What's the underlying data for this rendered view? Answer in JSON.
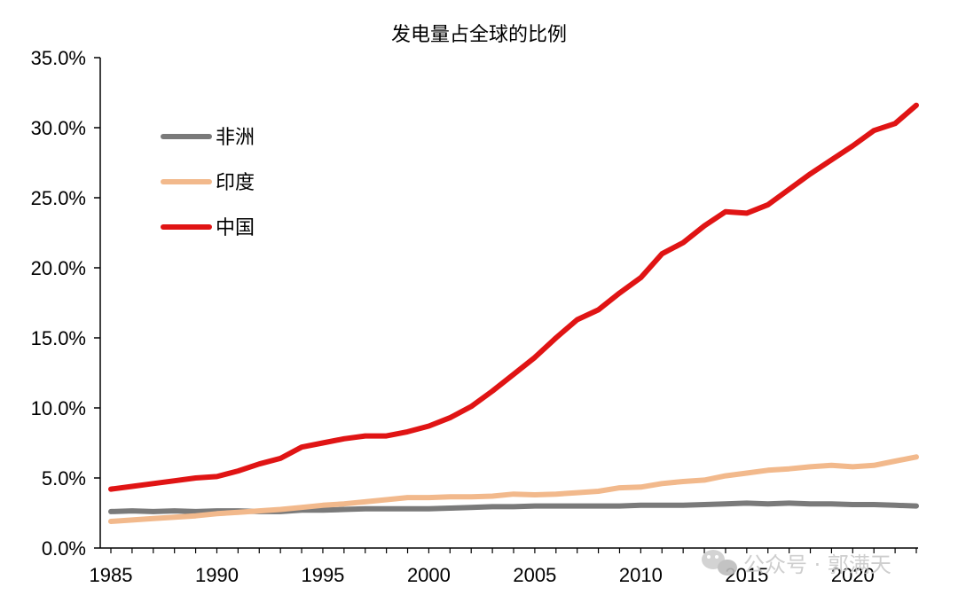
{
  "watermark": {
    "text": "公众号 · 郭满天",
    "icon": "wechat-icon"
  },
  "chart_data": {
    "type": "line",
    "title": "发电量占全球的比例",
    "xlabel": "",
    "ylabel": "",
    "xlim": [
      1985,
      2023
    ],
    "ylim": [
      0,
      35
    ],
    "x_ticks": [
      1985,
      1990,
      1995,
      2000,
      2005,
      2010,
      2015,
      2020
    ],
    "y_ticks": [
      "0.0%",
      "5.0%",
      "10.0%",
      "15.0%",
      "20.0%",
      "25.0%",
      "30.0%",
      "35.0%"
    ],
    "grid": false,
    "legend_position": "top-left",
    "x": [
      1985,
      1986,
      1987,
      1988,
      1989,
      1990,
      1991,
      1992,
      1993,
      1994,
      1995,
      1996,
      1997,
      1998,
      1999,
      2000,
      2001,
      2002,
      2003,
      2004,
      2005,
      2006,
      2007,
      2008,
      2009,
      2010,
      2011,
      2012,
      2013,
      2014,
      2015,
      2016,
      2017,
      2018,
      2019,
      2020,
      2021,
      2022,
      2023
    ],
    "series": [
      {
        "name": "非洲",
        "color": "#7a7a7a",
        "values": [
          2.6,
          2.65,
          2.6,
          2.65,
          2.6,
          2.65,
          2.65,
          2.6,
          2.6,
          2.7,
          2.7,
          2.75,
          2.8,
          2.8,
          2.8,
          2.8,
          2.85,
          2.9,
          2.95,
          2.95,
          3.0,
          3.0,
          3.0,
          3.0,
          3.0,
          3.05,
          3.05,
          3.05,
          3.1,
          3.15,
          3.2,
          3.15,
          3.2,
          3.15,
          3.15,
          3.1,
          3.1,
          3.05,
          3.0
        ]
      },
      {
        "name": "印度",
        "color": "#f2b98c",
        "values": [
          1.9,
          2.0,
          2.1,
          2.2,
          2.3,
          2.45,
          2.55,
          2.65,
          2.75,
          2.9,
          3.05,
          3.15,
          3.3,
          3.45,
          3.6,
          3.6,
          3.65,
          3.65,
          3.7,
          3.85,
          3.8,
          3.85,
          3.95,
          4.05,
          4.3,
          4.35,
          4.6,
          4.75,
          4.85,
          5.15,
          5.35,
          5.55,
          5.65,
          5.8,
          5.9,
          5.8,
          5.9,
          6.2,
          6.5
        ]
      },
      {
        "name": "中国",
        "color": "#e01414",
        "values": [
          4.2,
          4.4,
          4.6,
          4.8,
          5.0,
          5.1,
          5.5,
          6.0,
          6.4,
          7.2,
          7.5,
          7.8,
          8.0,
          8.0,
          8.3,
          8.7,
          9.3,
          10.1,
          11.2,
          12.4,
          13.6,
          15.0,
          16.3,
          17.0,
          18.2,
          19.3,
          21.0,
          21.8,
          23.0,
          24.0,
          23.9,
          24.5,
          25.6,
          26.7,
          27.7,
          28.7,
          29.8,
          30.3,
          31.6
        ]
      }
    ]
  }
}
